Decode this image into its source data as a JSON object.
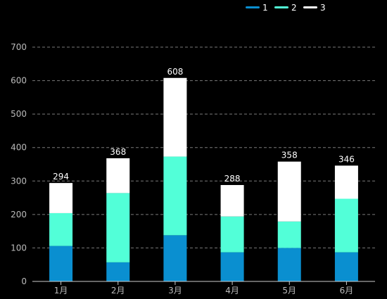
{
  "chart_data": {
    "type": "bar",
    "stacked": true,
    "categories": [
      "1月",
      "2月",
      "3月",
      "4月",
      "5月",
      "6月"
    ],
    "series": [
      {
        "name": "1",
        "color": "#0a8fd0",
        "values": [
          106,
          57,
          138,
          87,
          100,
          87
        ]
      },
      {
        "name": "2",
        "color": "#52ffd8",
        "values": [
          98,
          207,
          235,
          107,
          79,
          160
        ]
      },
      {
        "name": "3",
        "color": "#ffffff",
        "values": [
          90,
          104,
          235,
          94,
          179,
          99
        ]
      }
    ],
    "totals": [
      294,
      368,
      608,
      288,
      358,
      346
    ],
    "ylim": [
      0,
      700
    ],
    "yticks": [
      0,
      100,
      200,
      300,
      400,
      500,
      600,
      700
    ],
    "grid": true,
    "legend_position": "top-right",
    "background": "#000000"
  }
}
